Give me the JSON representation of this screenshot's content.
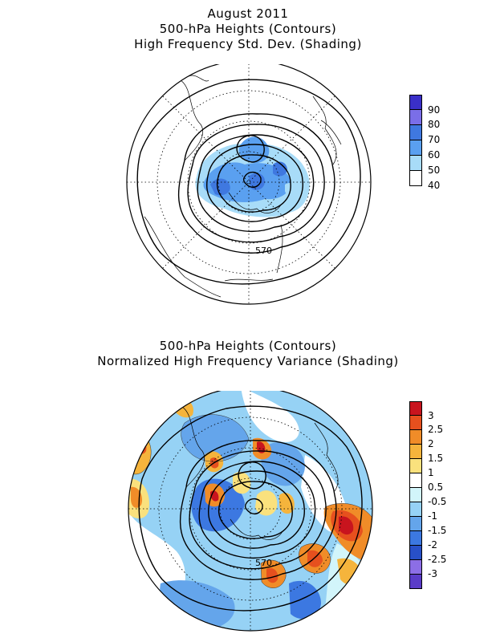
{
  "top_panel": {
    "title_lines": [
      "August 2011",
      "500-hPa Heights (Contours)",
      "High Frequency Std. Dev. (Shading)"
    ],
    "contour_label": "570",
    "legend": [
      {
        "label": "90",
        "color": "#3a2fc8"
      },
      {
        "label": "80",
        "color": "#7a6ee8"
      },
      {
        "label": "70",
        "color": "#3f78e0"
      },
      {
        "label": "60",
        "color": "#5aa0f0"
      },
      {
        "label": "50",
        "color": "#a8dcf8"
      },
      {
        "label": "40",
        "color": "#ffffff"
      }
    ]
  },
  "bottom_panel": {
    "title_lines": [
      "500-hPa Heights (Contours)",
      "Normalized High Frequency Variance (Shading)"
    ],
    "contour_label": "570",
    "legend": [
      {
        "label": "3",
        "color": "#c8141e"
      },
      {
        "label": "2.5",
        "color": "#e6501e"
      },
      {
        "label": "2",
        "color": "#f08c28"
      },
      {
        "label": "1.5",
        "color": "#f5b43c"
      },
      {
        "label": "1",
        "color": "#fae17d"
      },
      {
        "label": "0.5",
        "color": "#ffffff"
      },
      {
        "label": "-0.5",
        "color": "#d2f5fa"
      },
      {
        "label": "-1",
        "color": "#96d2f5"
      },
      {
        "label": "-1.5",
        "color": "#64a5eb"
      },
      {
        "label": "-2",
        "color": "#3c78e1"
      },
      {
        "label": "-2.5",
        "color": "#2850c8"
      },
      {
        "label": "-3",
        "color": "#8c6ee6"
      },
      {
        "label": "",
        "color": "#5a3cc8"
      }
    ]
  }
}
